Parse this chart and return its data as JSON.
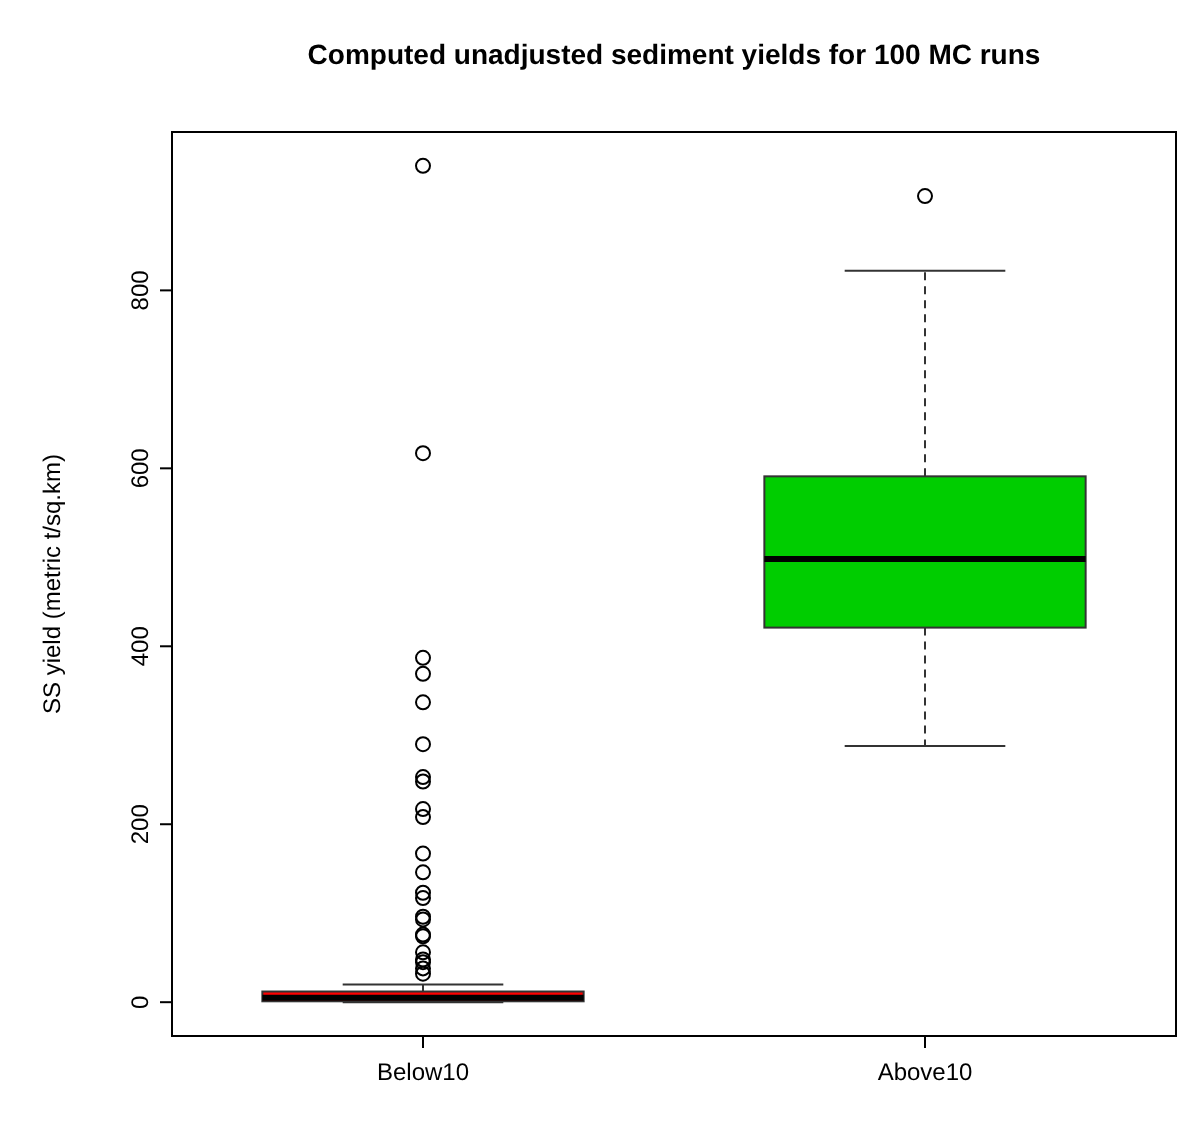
{
  "chart_data": {
    "type": "box",
    "title": "Computed unadjusted sediment yields for 100 MC runs",
    "ylabel": "SS yield (metric t/sq.km)",
    "categories": [
      "Below10",
      "Above10"
    ],
    "colors": [
      "#ff0000",
      "#00cd00"
    ],
    "boxes": [
      {
        "low": 0,
        "q1": 1,
        "median": 5,
        "q3": 12,
        "high": 20,
        "outliers": [
          940,
          617,
          387,
          369,
          337,
          290,
          253,
          248,
          217,
          208,
          167,
          146,
          123,
          117,
          96,
          93,
          76,
          74,
          56,
          48,
          45,
          38,
          32
        ]
      },
      {
        "low": 288,
        "q1": 421,
        "median": 498,
        "q3": 591,
        "high": 822,
        "outliers": [
          906
        ]
      }
    ],
    "ylim": [
      -38,
      978
    ],
    "yticks": [
      0,
      200,
      400,
      600,
      800
    ],
    "grid": false
  }
}
